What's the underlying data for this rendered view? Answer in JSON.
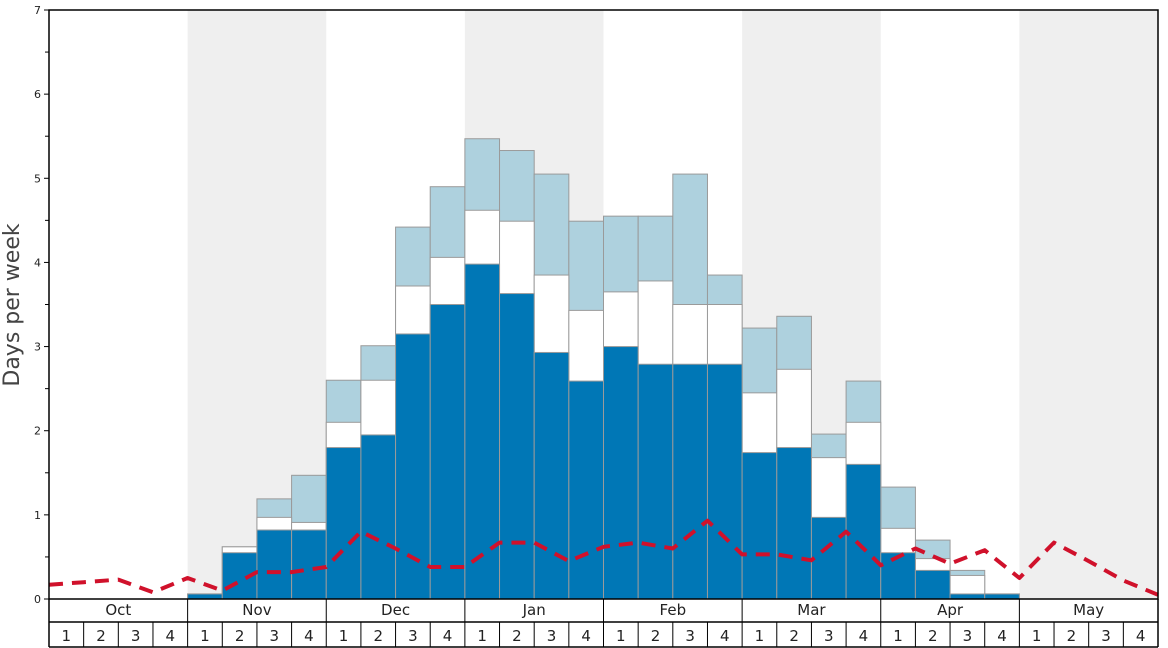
{
  "chart_data": {
    "type": "bar",
    "ylabel": "Days per week",
    "ylim": [
      0,
      7
    ],
    "y_ticks": [
      "0",
      "1",
      "2",
      "3",
      "4",
      "5",
      "6",
      "7"
    ],
    "months": [
      "Oct",
      "Nov",
      "Dec",
      "Jan",
      "Feb",
      "Mar",
      "Apr",
      "May"
    ],
    "week_labels": [
      "1",
      "2",
      "3",
      "4"
    ],
    "shaded_months": [
      "Nov",
      "Jan",
      "Mar",
      "May"
    ],
    "colors": {
      "dark": "#0077b6",
      "middle": "#ffffff",
      "light": "#aed1de",
      "average_line": "#d0112b",
      "shade": "#efefef"
    },
    "series": [
      {
        "values": [
          0,
          0,
          0,
          0,
          0.06,
          0.55,
          0.82,
          0.82,
          1.8,
          1.95,
          3.15,
          3.5,
          3.98,
          3.63,
          2.93,
          2.59,
          3.0,
          2.79,
          2.79,
          2.79,
          1.74,
          1.8,
          0.97,
          1.6,
          0.55,
          0.34,
          0.06,
          0.06,
          0,
          0,
          0,
          0
        ]
      },
      {
        "values": [
          0,
          0,
          0,
          0,
          0.06,
          0.62,
          0.97,
          0.91,
          2.1,
          2.6,
          3.72,
          4.06,
          4.62,
          4.49,
          3.85,
          3.43,
          3.65,
          3.78,
          3.5,
          3.5,
          2.45,
          2.73,
          1.68,
          2.1,
          0.84,
          0.48,
          0.28,
          0.06,
          0,
          0,
          0,
          0
        ]
      },
      {
        "values": [
          0,
          0,
          0,
          0,
          0.06,
          0.62,
          1.19,
          1.47,
          2.6,
          3.01,
          4.42,
          4.9,
          5.47,
          5.33,
          5.05,
          4.49,
          4.55,
          4.55,
          5.05,
          3.85,
          3.22,
          3.36,
          1.96,
          2.59,
          1.33,
          0.7,
          0.34,
          0.06,
          0,
          0,
          0,
          0
        ]
      },
      {
        "type": "line",
        "style": "dashed",
        "values": [
          0.17,
          0.2,
          0.23,
          0.08,
          0.25,
          0.1,
          0.32,
          0.32,
          0.38,
          0.8,
          0.6,
          0.38,
          0.38,
          0.67,
          0.67,
          0.45,
          0.62,
          0.67,
          0.6,
          0.93,
          0.53,
          0.53,
          0.46,
          0.8,
          0.4,
          0.6,
          0.42,
          0.58,
          0.25,
          0.67,
          0.45,
          0.22,
          0.05
        ]
      }
    ]
  }
}
